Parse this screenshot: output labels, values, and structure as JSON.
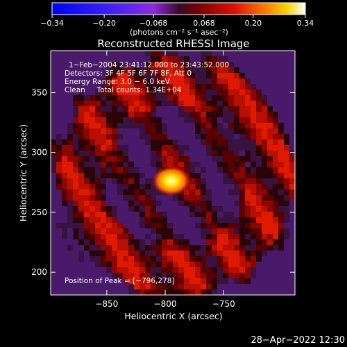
{
  "chart_data": {
    "type": "heatmap",
    "title": "Reconstructed RHESSI Image",
    "xlabel": "Heliocentric X (arcsec)",
    "ylabel": "Heliocentric Y (arcsec)",
    "xlim": [
      -898,
      -689
    ],
    "ylim": [
      181,
      385
    ],
    "x_ticks": [
      -850,
      -800,
      -750
    ],
    "x_tick_labels": [
      "−850",
      "−800",
      "−750"
    ],
    "y_ticks": [
      200,
      250,
      300,
      350
    ],
    "y_tick_labels": [
      "200",
      "250",
      "300",
      "350"
    ],
    "colorbar": {
      "range": [
        -0.34,
        0.34
      ],
      "ticks": [
        -0.34,
        -0.2,
        -0.068,
        0.068,
        0.2,
        0.34
      ],
      "tick_labels": [
        "−0.34",
        "−0.20",
        "−0.068",
        "0.068",
        "0.20",
        "0.34"
      ],
      "units_label": "(photons cm⁻² s⁻¹ asec⁻²)"
    },
    "peak": {
      "x": -796,
      "y": 278
    },
    "annotations": [
      "1−Feb−2004 23:41:12.000 to 23:43:52.000",
      "Detectors: 3F 4F 5F 6F 7F 8F, Att 0",
      "Energy Range: 3.0 − 6.0 keV",
      "Clean     Total counts: 1.34E+04"
    ],
    "peak_label": "Position of Peak = [−796,278]"
  },
  "footer": {
    "timestamp": "28−Apr−2022 12:30"
  }
}
